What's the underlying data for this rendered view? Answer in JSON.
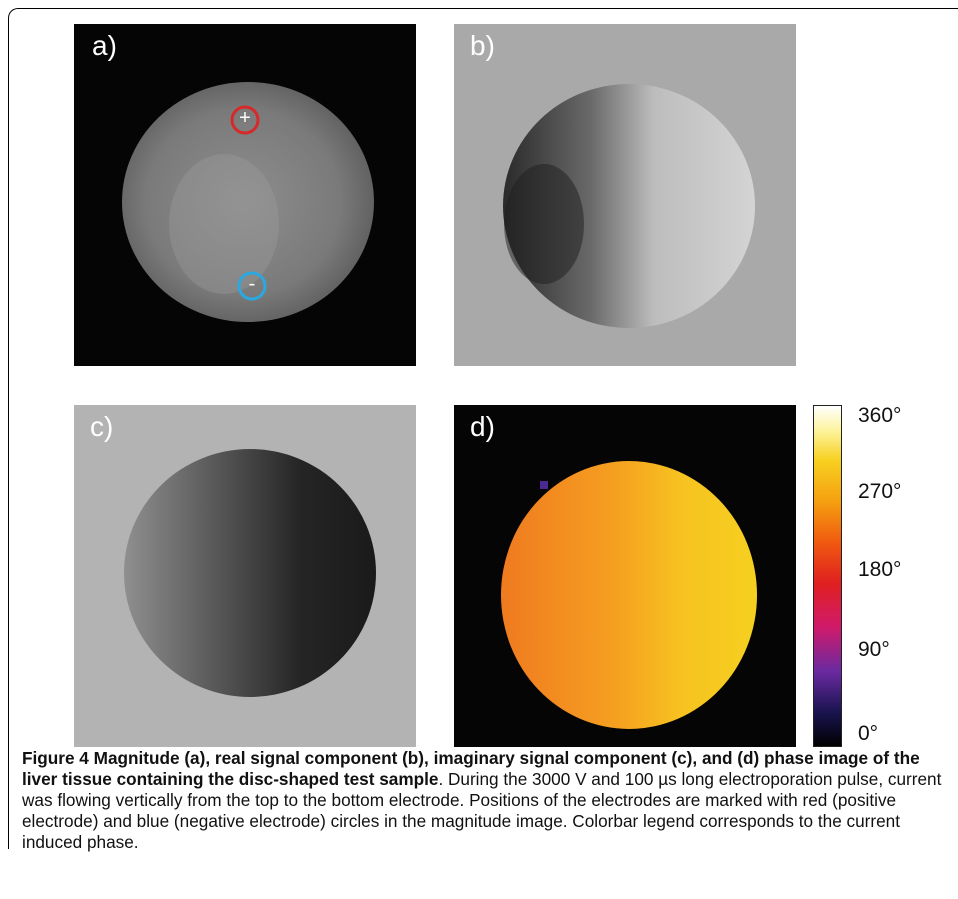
{
  "panels": {
    "a": {
      "label": "a)",
      "electrode_positive": "+",
      "electrode_negative": "-"
    },
    "b": {
      "label": "b)"
    },
    "c": {
      "label": "c)"
    },
    "d": {
      "label": "d)"
    }
  },
  "colorbar": {
    "ticks": [
      "360°",
      "270°",
      "180°",
      "90°",
      "0°"
    ]
  },
  "colors": {
    "positive_electrode": "#d42a2a",
    "negative_electrode": "#2aa8e0"
  },
  "caption": {
    "title": "Figure 4 Magnitude (a), real signal component (b), imaginary signal component (c), and (d) phase image of the liver tissue containing the disc-shaped test sample",
    "body": ". During the 3000 V and 100 µs long electroporation pulse, current was flowing vertically from the top to the bottom electrode. Positions of the electrodes are marked with red (positive electrode) and blue (negative electrode) circles in the magnitude image. Colorbar legend corresponds to the current induced phase."
  }
}
